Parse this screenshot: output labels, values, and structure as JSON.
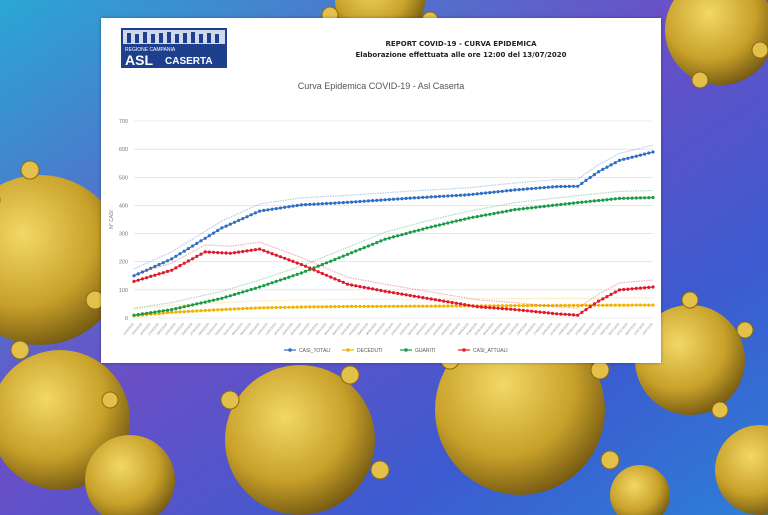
{
  "header": {
    "logo_region": "REGIONE CAMPANIA",
    "logo_main": "ASL",
    "logo_city": "CASERTA",
    "title": "REPORT COVID-19 - CURVA EPIDEMICA",
    "subtitle": "Elaborazione effettuata alle ore 12:00 del 13/07/2020"
  },
  "colors": {
    "CASI_TOTALI": "#2e6fc4",
    "DECEDUTI": "#f0b400",
    "GUARITI": "#1a9b45",
    "CASI_ATTUALI": "#e0192b"
  },
  "chart_data": {
    "type": "line",
    "title": "Curva Epidemica COVID-19 - Asl Caserta",
    "ylabel": "N° CASI",
    "xlabel": "",
    "ylim": [
      0,
      700
    ],
    "yticks": [
      0,
      100,
      200,
      300,
      400,
      500,
      600,
      700
    ],
    "grid": "horizontal",
    "legend": "bottom",
    "x_start": "11/03/2020",
    "x_end": "13/07/2020",
    "markers": true,
    "series": [
      {
        "name": "CASI_TOTALI",
        "x": [
          "2020-03-11",
          "2020-03-20",
          "2020-04-01",
          "2020-04-10",
          "2020-04-20",
          "2020-04-30",
          "2020-05-15",
          "2020-05-30",
          "2020-06-10",
          "2020-06-20",
          "2020-06-25",
          "2020-06-30",
          "2020-07-05",
          "2020-07-13"
        ],
        "values": [
          150,
          210,
          320,
          380,
          402,
          410,
          425,
          438,
          455,
          467,
          468,
          520,
          560,
          590
        ]
      },
      {
        "name": "DECEDUTI",
        "x": [
          "2020-03-11",
          "2020-03-20",
          "2020-04-01",
          "2020-04-10",
          "2020-04-20",
          "2020-05-01",
          "2020-05-20",
          "2020-06-10",
          "2020-07-13"
        ],
        "values": [
          8,
          20,
          30,
          36,
          39,
          41,
          42,
          44,
          46
        ]
      },
      {
        "name": "GUARITI",
        "x": [
          "2020-03-11",
          "2020-03-20",
          "2020-04-01",
          "2020-04-10",
          "2020-04-20",
          "2020-04-30",
          "2020-05-10",
          "2020-05-20",
          "2020-05-30",
          "2020-06-10",
          "2020-06-25",
          "2020-07-05",
          "2020-07-13"
        ],
        "values": [
          10,
          30,
          70,
          110,
          160,
          220,
          280,
          320,
          355,
          385,
          410,
          425,
          428
        ]
      },
      {
        "name": "CASI_ATTUALI",
        "x": [
          "2020-03-11",
          "2020-03-20",
          "2020-03-28",
          "2020-04-03",
          "2020-04-10",
          "2020-04-20",
          "2020-05-01",
          "2020-05-10",
          "2020-05-20",
          "2020-06-01",
          "2020-06-10",
          "2020-06-20",
          "2020-06-25",
          "2020-06-30",
          "2020-07-05",
          "2020-07-13"
        ],
        "values": [
          130,
          170,
          235,
          230,
          245,
          190,
          120,
          95,
          70,
          40,
          30,
          15,
          10,
          60,
          100,
          110
        ]
      }
    ]
  }
}
